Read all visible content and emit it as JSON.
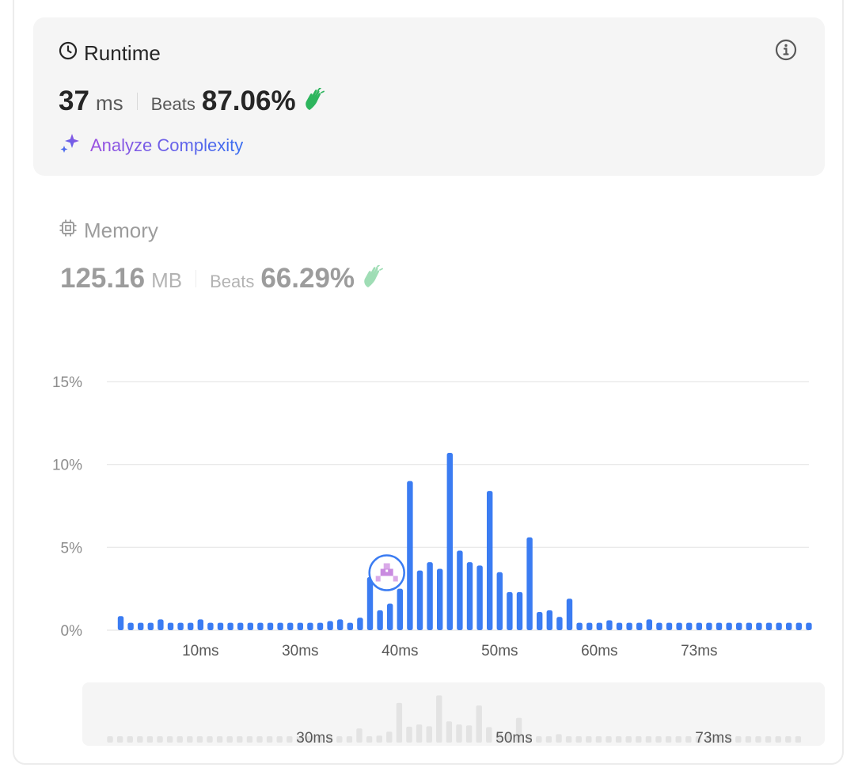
{
  "runtime": {
    "title": "Runtime",
    "value": "37",
    "unit": "ms",
    "beats_label": "Beats",
    "beats_value": "87.06%",
    "analyze_label": "Analyze Complexity"
  },
  "memory": {
    "title": "Memory",
    "value": "125.16",
    "unit": "MB",
    "beats_label": "Beats",
    "beats_value": "66.29%"
  },
  "colors": {
    "bar": "#3b7cf2",
    "accent_green": "#2db55d",
    "nav_bar": "#e3e3e3",
    "grid": "#e6e6e6"
  },
  "icons": {
    "runtime": "clock-icon",
    "memory": "chip-icon",
    "info": "info-icon",
    "analyze": "sparkle-icon",
    "beats": "clapping-hands-icon",
    "marker": "user-avatar-icon"
  },
  "chart_data": {
    "type": "bar",
    "title": "",
    "xlabel": "",
    "ylabel": "",
    "ylim": [
      0,
      15
    ],
    "y_ticks": [
      "15%",
      "10%",
      "5%",
      "0%"
    ],
    "y_tick_values": [
      15,
      10,
      5,
      0
    ],
    "x_ticks": [
      "10ms",
      "30ms",
      "40ms",
      "50ms",
      "60ms",
      "73ms"
    ],
    "x_tick_bar_index": [
      8,
      18,
      28,
      38,
      48,
      58
    ],
    "values": [
      0.85,
      0.45,
      0.45,
      0.45,
      0.65,
      0.45,
      0.45,
      0.45,
      0.65,
      0.45,
      0.45,
      0.45,
      0.45,
      0.45,
      0.45,
      0.45,
      0.45,
      0.45,
      0.45,
      0.45,
      0.45,
      0.55,
      0.65,
      0.45,
      0.75,
      3.2,
      1.2,
      1.6,
      2.5,
      9.0,
      3.6,
      4.1,
      3.7,
      10.7,
      4.8,
      4.1,
      3.9,
      8.4,
      3.5,
      2.3,
      2.3,
      5.6,
      1.1,
      1.2,
      0.8,
      1.9,
      0.45,
      0.45,
      0.45,
      0.6,
      0.45,
      0.45,
      0.45,
      0.65,
      0.45,
      0.45,
      0.45,
      0.45,
      0.45,
      0.45,
      0.45,
      0.45,
      0.45,
      0.45,
      0.45,
      0.45,
      0.45,
      0.45,
      0.45,
      0.45
    ],
    "marker_bar_index": 27,
    "navigator_ticks": [
      "30ms",
      "50ms",
      "73ms"
    ],
    "navigator_tick_bar_index": [
      20,
      40,
      60
    ]
  }
}
